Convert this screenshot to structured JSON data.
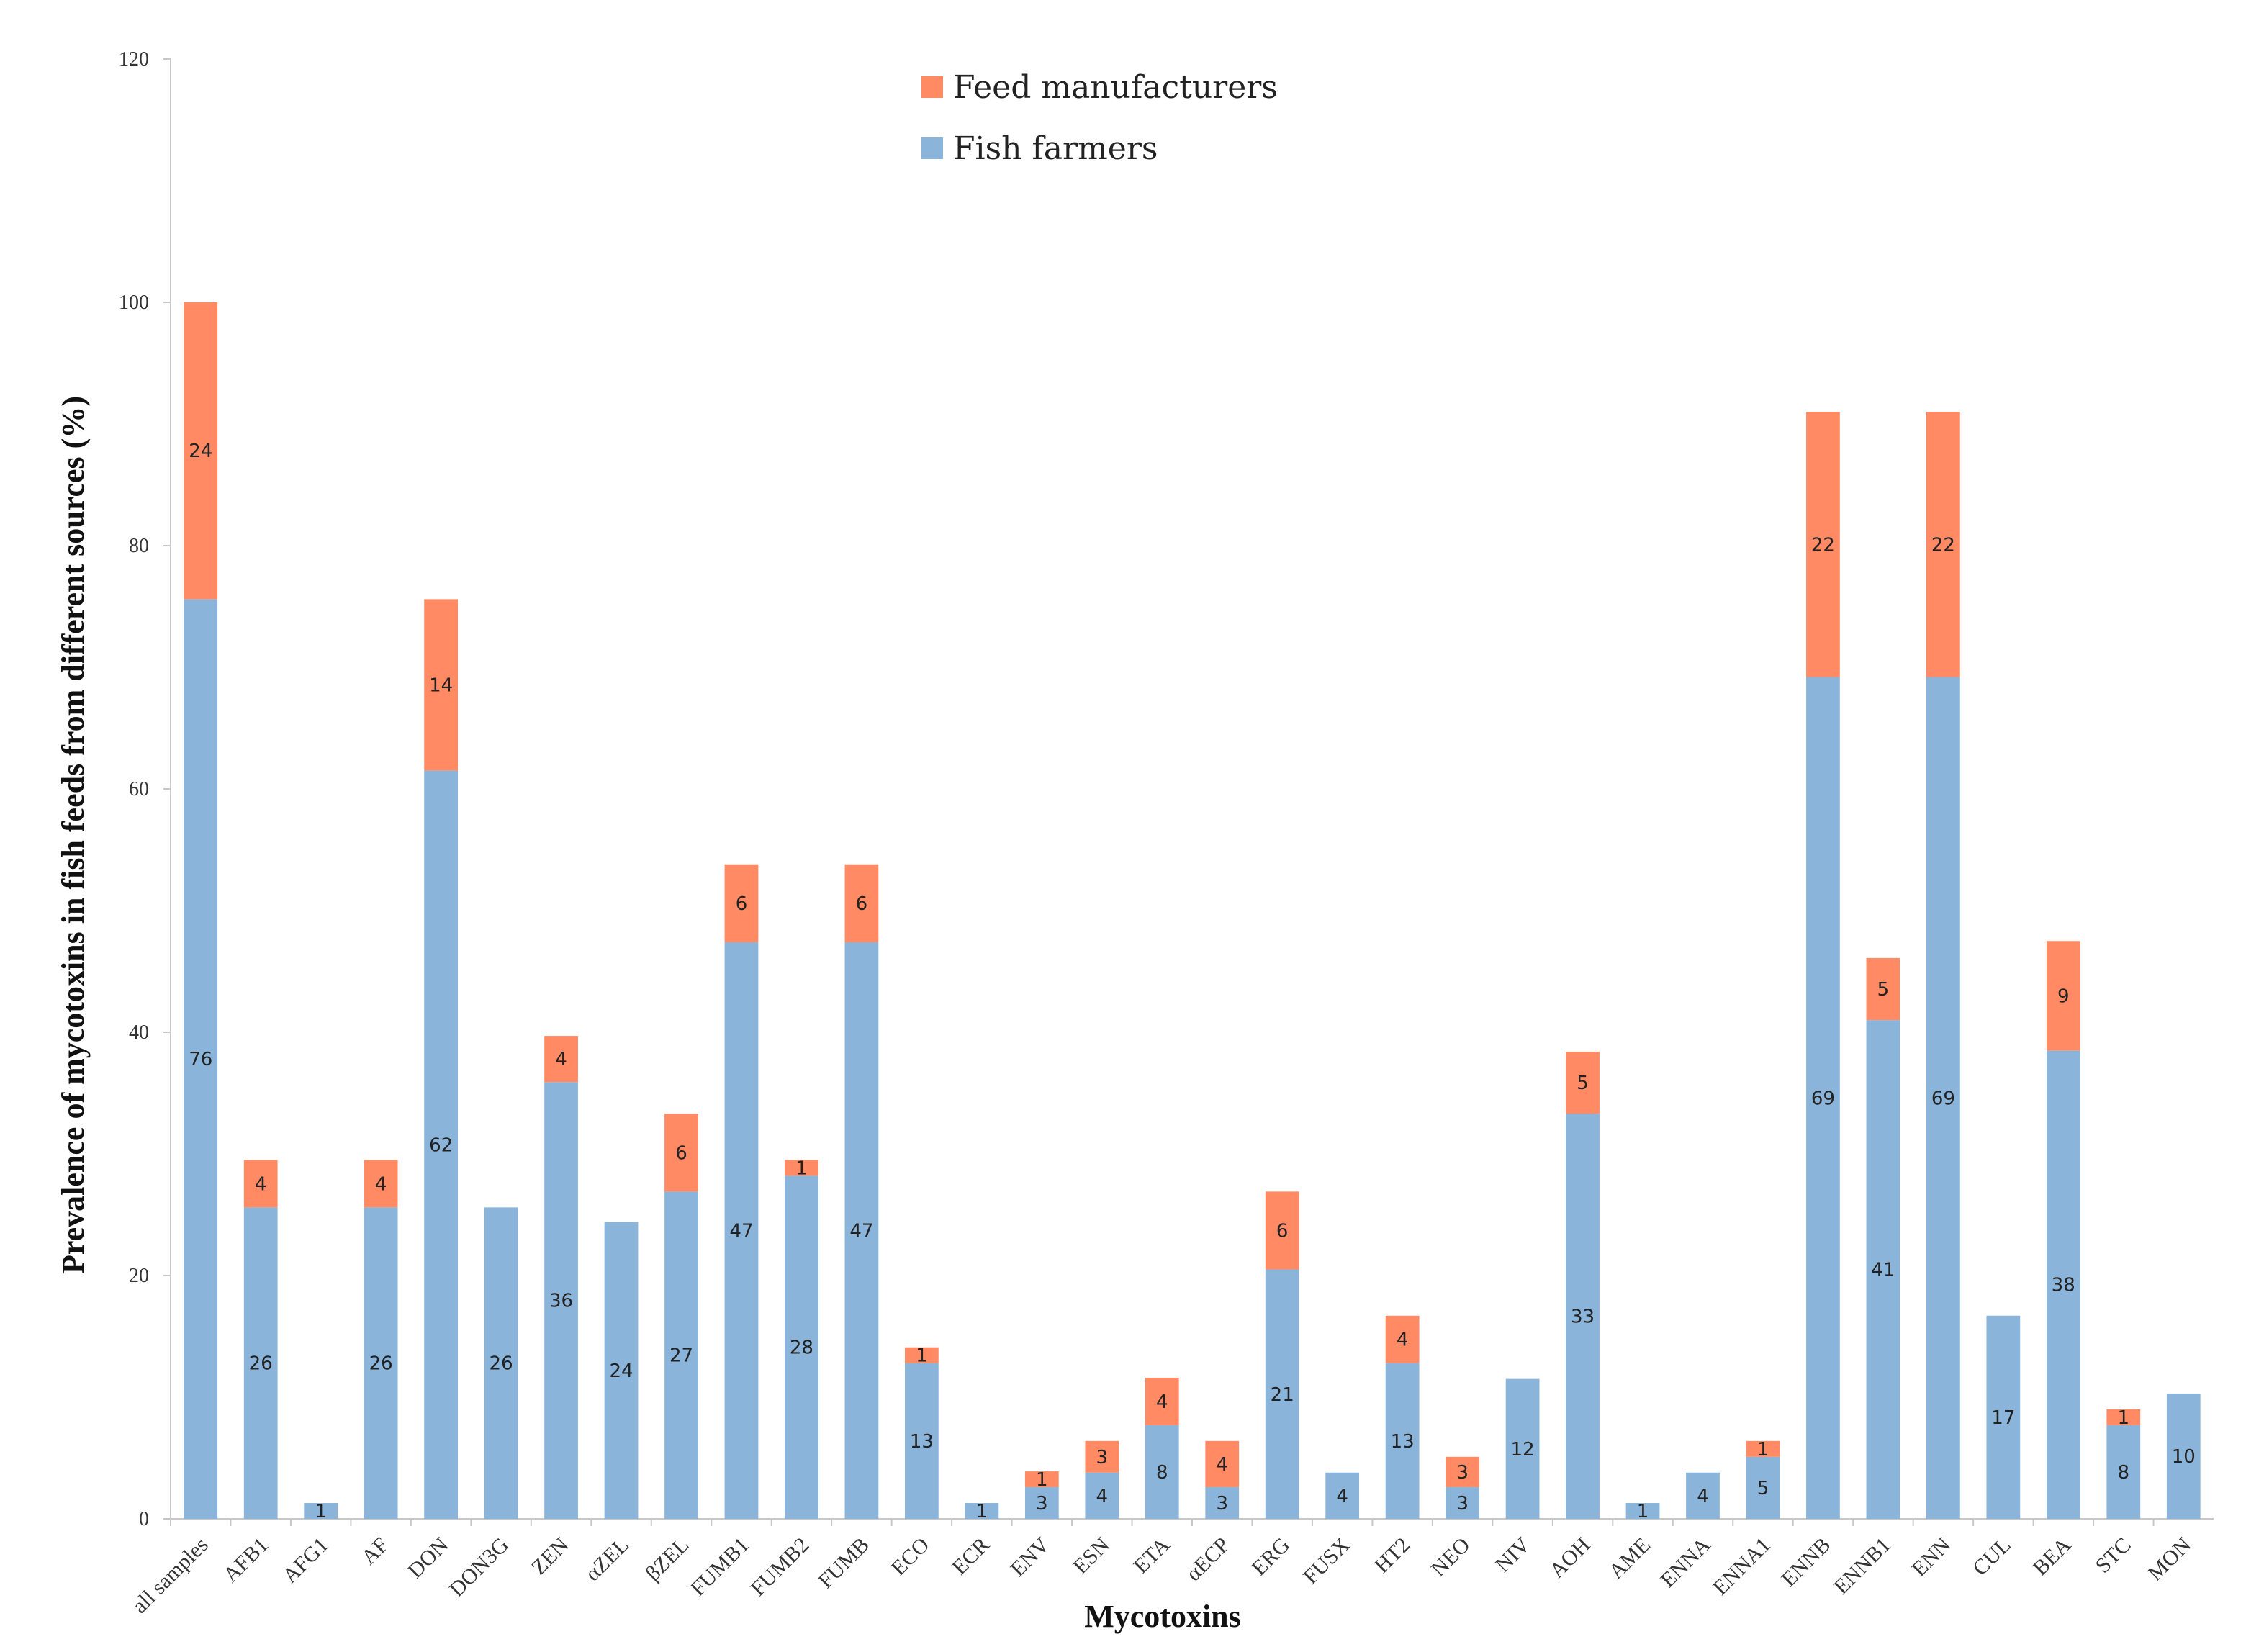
{
  "chart_data": {
    "type": "bar",
    "stacked": true,
    "xlabel": "Mycotoxins",
    "ylabel": "Prevalence of mycotoxins in fish feeds from different sources (%)",
    "ylim": [
      0,
      120
    ],
    "yticks": [
      0,
      20,
      40,
      60,
      80,
      100,
      120
    ],
    "yticks_text": [
      "0",
      "20",
      "40",
      "60",
      "80",
      "100",
      "120"
    ],
    "legend_position": "top-center",
    "categories": [
      "all samples",
      "AFB1",
      "AFG1",
      "AF",
      "DON",
      "DON3G",
      "ZEN",
      "αZEL",
      "βZEL",
      "FUMB1",
      "FUMB2",
      "FUMB",
      "ECO",
      "ECR",
      "ENV",
      "ESN",
      "ETA",
      "αECP",
      "ERG",
      "FUSX",
      "HT2",
      "NEO",
      "NIV",
      "AOH",
      "AME",
      "ENNA",
      "ENNA1",
      "ENNB",
      "ENNB1",
      "ENN",
      "CUL",
      "BEA",
      "STC",
      "MON"
    ],
    "series": [
      {
        "name": "Fish farmers",
        "color": "#8AB4DA",
        "values": [
          75.6,
          25.6,
          1.3,
          25.6,
          61.5,
          25.6,
          35.9,
          24.4,
          26.9,
          47.4,
          28.2,
          47.4,
          12.8,
          1.3,
          2.6,
          3.8,
          7.7,
          2.6,
          20.5,
          3.8,
          12.8,
          2.6,
          11.5,
          33.3,
          1.3,
          3.8,
          5.1,
          69.2,
          41.0,
          69.2,
          16.7,
          38.5,
          7.7,
          10.3
        ],
        "labels": [
          "76",
          "26",
          "1",
          "26",
          "62",
          "26",
          "36",
          "24",
          "27",
          "47",
          "28",
          "47",
          "13",
          "1",
          "3",
          "4",
          "8",
          "3",
          "21",
          "4",
          "13",
          "3",
          "12",
          "33",
          "1",
          "4",
          "5",
          "69",
          "41",
          "69",
          "17",
          "38",
          "8",
          "10"
        ]
      },
      {
        "name": "Feed manufacturers",
        "color": "#FF8A64",
        "values": [
          24.4,
          3.9,
          0,
          3.9,
          14.1,
          0,
          3.8,
          0,
          6.4,
          6.4,
          1.3,
          6.4,
          1.3,
          0,
          1.3,
          2.6,
          3.9,
          3.8,
          6.4,
          0,
          3.9,
          2.5,
          0,
          5.1,
          0,
          0,
          1.3,
          21.8,
          5.1,
          21.8,
          0,
          9.0,
          1.3,
          0
        ],
        "labels": [
          "24",
          "4",
          "",
          "4",
          "14",
          "",
          "4",
          "",
          "6",
          "6",
          "1",
          "6",
          "1",
          "",
          "1",
          "3",
          "4",
          "4",
          "6",
          "",
          "4",
          "3",
          "",
          "5",
          "",
          "",
          "1",
          "22",
          "5",
          "22",
          "",
          "9",
          "1",
          ""
        ]
      }
    ]
  }
}
